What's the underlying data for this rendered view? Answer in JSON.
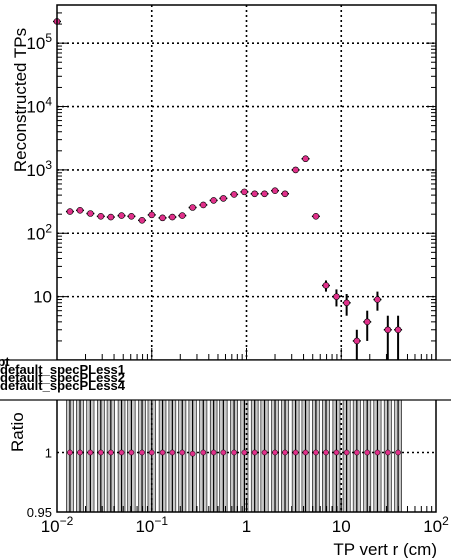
{
  "chart_data": [
    {
      "type": "scatter",
      "panel": "top",
      "title": "",
      "xlabel": "",
      "ylabel": "Reconstructed TPs",
      "xscale": "log",
      "yscale": "log",
      "xlim": [
        0.01,
        100
      ],
      "ylim": [
        1,
        400000
      ],
      "grid": true,
      "marker_color": "#e0308a",
      "x_ticks": [
        {
          "value": 0.01,
          "base": "10",
          "exp": "−2"
        },
        {
          "value": 0.1,
          "base": "10",
          "exp": "−1"
        },
        {
          "value": 1,
          "base": "1",
          "exp": ""
        },
        {
          "value": 10,
          "base": "10",
          "exp": ""
        },
        {
          "value": 100,
          "base": "10",
          "exp": "2"
        }
      ],
      "y_ticks": [
        {
          "value": 10,
          "base": "10",
          "exp": ""
        },
        {
          "value": 100,
          "base": "10",
          "exp": "2"
        },
        {
          "value": 1000,
          "base": "10",
          "exp": "3"
        },
        {
          "value": 10000,
          "base": "10",
          "exp": "4"
        },
        {
          "value": 100000,
          "base": "10",
          "exp": "5"
        }
      ],
      "legend": {
        "placement": "bottom-left",
        "entries": [
          "ewpt",
          "default_specPLess1",
          "default_specPLess2",
          "default_specPLess4"
        ]
      },
      "series": [
        {
          "points": [
            {
              "x": 0.01,
              "y": 220000,
              "err": 0
            },
            {
              "x": 0.0137,
              "y": 220,
              "err": 0
            },
            {
              "x": 0.0175,
              "y": 230,
              "err": 0
            },
            {
              "x": 0.0225,
              "y": 205,
              "err": 0
            },
            {
              "x": 0.029,
              "y": 185,
              "err": 0
            },
            {
              "x": 0.037,
              "y": 180,
              "err": 0
            },
            {
              "x": 0.048,
              "y": 190,
              "err": 0
            },
            {
              "x": 0.061,
              "y": 185,
              "err": 0
            },
            {
              "x": 0.079,
              "y": 160,
              "err": 0
            },
            {
              "x": 0.1,
              "y": 195,
              "err": 0
            },
            {
              "x": 0.13,
              "y": 175,
              "err": 0
            },
            {
              "x": 0.165,
              "y": 180,
              "err": 0
            },
            {
              "x": 0.21,
              "y": 190,
              "err": 0
            },
            {
              "x": 0.27,
              "y": 255,
              "err": 0
            },
            {
              "x": 0.35,
              "y": 280,
              "err": 0
            },
            {
              "x": 0.45,
              "y": 330,
              "err": 0
            },
            {
              "x": 0.57,
              "y": 355,
              "err": 0
            },
            {
              "x": 0.74,
              "y": 410,
              "err": 0
            },
            {
              "x": 0.95,
              "y": 450,
              "err": 0
            },
            {
              "x": 1.22,
              "y": 420,
              "err": 0
            },
            {
              "x": 1.55,
              "y": 420,
              "err": 0
            },
            {
              "x": 2.0,
              "y": 470,
              "err": 0
            },
            {
              "x": 2.55,
              "y": 420,
              "err": 0
            },
            {
              "x": 3.3,
              "y": 1000,
              "err": 0
            },
            {
              "x": 4.2,
              "y": 1500,
              "err": 0
            },
            {
              "x": 5.4,
              "y": 185,
              "err": 0
            },
            {
              "x": 6.9,
              "y": 15,
              "err": 3
            },
            {
              "x": 8.9,
              "y": 10,
              "err": 3
            },
            {
              "x": 11.4,
              "y": 8,
              "err": 3
            },
            {
              "x": 14.6,
              "y": 2,
              "err": 1
            },
            {
              "x": 18.8,
              "y": 4,
              "err": 2
            },
            {
              "x": 24.1,
              "y": 9,
              "err": 3
            },
            {
              "x": 31,
              "y": 3,
              "err": 2
            },
            {
              "x": 39.8,
              "y": 3,
              "err": 2
            }
          ]
        }
      ]
    },
    {
      "type": "scatter",
      "panel": "ratio",
      "title": "",
      "xlabel": "TP vert r (cm)",
      "ylabel": "Ratio",
      "xscale": "log",
      "xlim": [
        0.01,
        100
      ],
      "ylim": [
        0.95,
        1.05
      ],
      "grid": true,
      "y_ticks": [
        {
          "value": 0.95,
          "label": "0.95"
        },
        {
          "value": 1.0,
          "label": "1"
        }
      ],
      "series": [
        {
          "points": [
            {
              "x": 0.0137,
              "y": 1.0
            },
            {
              "x": 0.0175,
              "y": 1.0
            },
            {
              "x": 0.0225,
              "y": 1.0
            },
            {
              "x": 0.029,
              "y": 1.0
            },
            {
              "x": 0.037,
              "y": 1.0
            },
            {
              "x": 0.048,
              "y": 1.0
            },
            {
              "x": 0.061,
              "y": 1.0
            },
            {
              "x": 0.079,
              "y": 1.0
            },
            {
              "x": 0.1,
              "y": 1.0
            },
            {
              "x": 0.13,
              "y": 1.0
            },
            {
              "x": 0.165,
              "y": 1.0
            },
            {
              "x": 0.21,
              "y": 1.0
            },
            {
              "x": 0.27,
              "y": 0.999
            },
            {
              "x": 0.35,
              "y": 1.0
            },
            {
              "x": 0.45,
              "y": 1.0
            },
            {
              "x": 0.57,
              "y": 1.0
            },
            {
              "x": 0.74,
              "y": 1.0
            },
            {
              "x": 0.95,
              "y": 1.0
            },
            {
              "x": 1.22,
              "y": 1.0
            },
            {
              "x": 1.55,
              "y": 1.0
            },
            {
              "x": 2.0,
              "y": 1.0
            },
            {
              "x": 2.55,
              "y": 1.0
            },
            {
              "x": 3.3,
              "y": 1.0
            },
            {
              "x": 4.2,
              "y": 1.0
            },
            {
              "x": 5.4,
              "y": 1.0
            },
            {
              "x": 6.9,
              "y": 1.0
            },
            {
              "x": 8.9,
              "y": 1.0
            },
            {
              "x": 11.4,
              "y": 1.0
            },
            {
              "x": 14.6,
              "y": 1.0
            },
            {
              "x": 18.8,
              "y": 1.0
            },
            {
              "x": 24.1,
              "y": 1.0
            },
            {
              "x": 31,
              "y": 1.0
            },
            {
              "x": 39.8,
              "y": 1.0
            }
          ]
        }
      ]
    }
  ]
}
